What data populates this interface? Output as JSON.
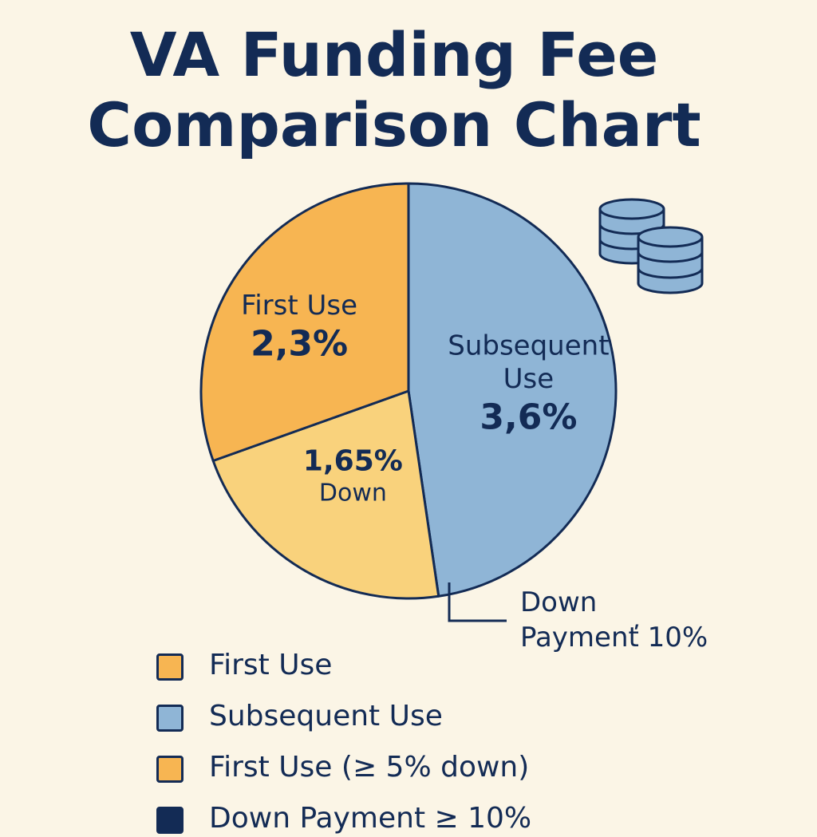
{
  "chart_data": {
    "type": "pie",
    "title_lines": [
      "VA Funding Fee",
      "Comparison Chart"
    ],
    "slices": [
      {
        "lines": [
          "Subsequent",
          "Use"
        ],
        "value_label": "3,6%",
        "value": 3.6,
        "color": "#8fb5d6"
      },
      {
        "lines": [
          "Down"
        ],
        "value_label": "1,65%",
        "value": 1.65,
        "color": "#f9d27c"
      },
      {
        "lines": [
          "First Use"
        ],
        "value_label": "2,3%",
        "value": 2.3,
        "color": "#f7b552"
      }
    ],
    "callout": {
      "lines": [
        "Down",
        "Paymenť 10%"
      ]
    },
    "legend": [
      {
        "label": "First Use",
        "color": "#f7b552"
      },
      {
        "label": "Subsequent Use",
        "color": "#8fb5d6"
      },
      {
        "label": "First Use (≥ 5% down)",
        "color": "#f7b552"
      },
      {
        "label": "Down Payment ≥ 10%",
        "color": "#132b55"
      }
    ]
  },
  "colors": {
    "outline": "#132b55",
    "background": "#fbf5e6"
  },
  "icons": [
    "coin-stack-icon"
  ]
}
